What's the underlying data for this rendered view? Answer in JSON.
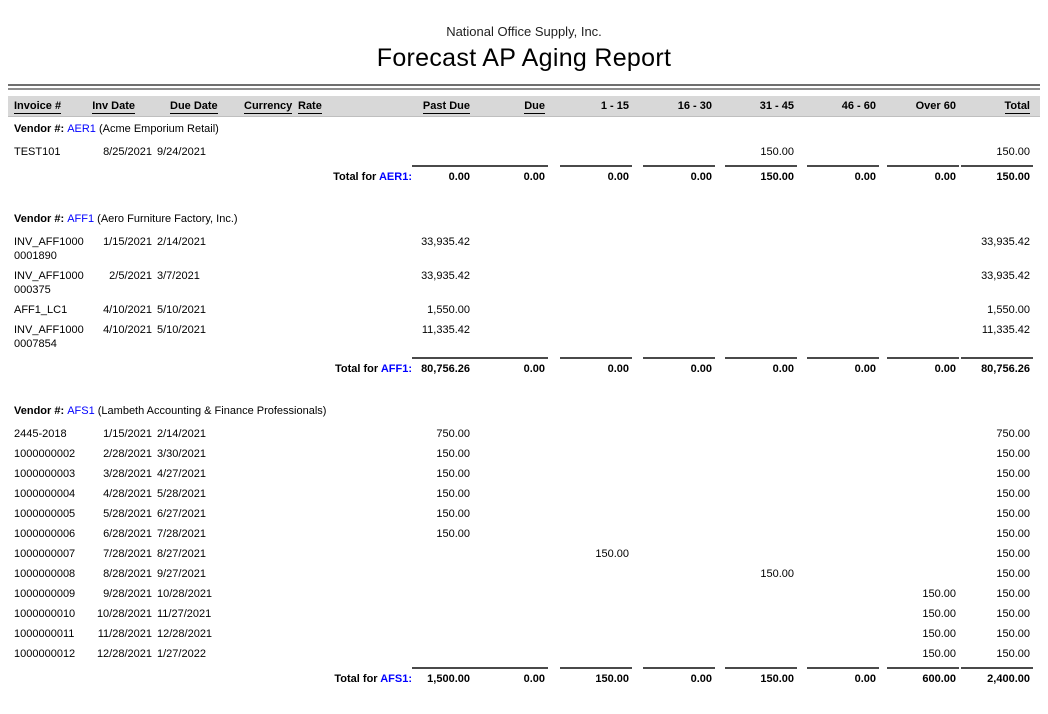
{
  "header": {
    "company": "National Office Supply, Inc.",
    "title": "Forecast AP Aging Report"
  },
  "colors": {
    "accent_blue": "#0000ff",
    "header_bar_bg": "#d8d8d8",
    "rule_gray": "#6f6f6f"
  },
  "table": {
    "vendor_prefix": "Vendor #:",
    "total_prefix": "Total for",
    "total_suffix": ":",
    "columns": [
      {
        "label": "Invoice #",
        "underline": true
      },
      {
        "label": "Inv Date",
        "underline": true
      },
      {
        "label": "Due Date",
        "underline": true
      },
      {
        "label": "Currency",
        "underline": true
      },
      {
        "label": "Rate",
        "underline": true
      },
      {
        "label": "Past Due",
        "underline": true
      },
      {
        "label": "Due",
        "underline": true
      },
      {
        "label": "1 - 15",
        "underline": false
      },
      {
        "label": "16 - 30",
        "underline": false
      },
      {
        "label": "31 - 45",
        "underline": false
      },
      {
        "label": "46 - 60",
        "underline": false
      },
      {
        "label": "Over 60",
        "underline": false
      },
      {
        "label": "Total",
        "underline": true
      }
    ]
  },
  "vendors": [
    {
      "code": "AER1",
      "name": "(Acme Emporium Retail)",
      "invoices": [
        {
          "invoice_lines": [
            "TEST101"
          ],
          "inv_date": "8/25/2021",
          "due_date": "9/24/2021",
          "amounts": [
            "",
            "",
            "",
            "",
            "150.00",
            "",
            "",
            "150.00"
          ]
        }
      ],
      "totals": [
        "0.00",
        "0.00",
        "0.00",
        "0.00",
        "150.00",
        "0.00",
        "0.00",
        "150.00"
      ]
    },
    {
      "code": "AFF1",
      "name": "(Aero Furniture Factory, Inc.)",
      "invoices": [
        {
          "invoice_lines": [
            "INV_AFF1000",
            "0001890"
          ],
          "inv_date": "1/15/2021",
          "due_date": "2/14/2021",
          "amounts": [
            "33,935.42",
            "",
            "",
            "",
            "",
            "",
            "",
            "33,935.42"
          ]
        },
        {
          "invoice_lines": [
            "INV_AFF1000",
            "000375"
          ],
          "inv_date": "2/5/2021",
          "due_date": "3/7/2021",
          "amounts": [
            "33,935.42",
            "",
            "",
            "",
            "",
            "",
            "",
            "33,935.42"
          ]
        },
        {
          "invoice_lines": [
            "AFF1_LC1"
          ],
          "inv_date": "4/10/2021",
          "due_date": "5/10/2021",
          "amounts": [
            "1,550.00",
            "",
            "",
            "",
            "",
            "",
            "",
            "1,550.00"
          ]
        },
        {
          "invoice_lines": [
            "INV_AFF1000",
            "0007854"
          ],
          "inv_date": "4/10/2021",
          "due_date": "5/10/2021",
          "amounts": [
            "11,335.42",
            "",
            "",
            "",
            "",
            "",
            "",
            "11,335.42"
          ]
        }
      ],
      "totals": [
        "80,756.26",
        "0.00",
        "0.00",
        "0.00",
        "0.00",
        "0.00",
        "0.00",
        "80,756.26"
      ]
    },
    {
      "code": "AFS1",
      "name": "(Lambeth Accounting & Finance Professionals)",
      "invoices": [
        {
          "invoice_lines": [
            "2445-2018"
          ],
          "inv_date": "1/15/2021",
          "due_date": "2/14/2021",
          "amounts": [
            "750.00",
            "",
            "",
            "",
            "",
            "",
            "",
            "750.00"
          ]
        },
        {
          "invoice_lines": [
            "1000000002"
          ],
          "inv_date": "2/28/2021",
          "due_date": "3/30/2021",
          "amounts": [
            "150.00",
            "",
            "",
            "",
            "",
            "",
            "",
            "150.00"
          ]
        },
        {
          "invoice_lines": [
            "1000000003"
          ],
          "inv_date": "3/28/2021",
          "due_date": "4/27/2021",
          "amounts": [
            "150.00",
            "",
            "",
            "",
            "",
            "",
            "",
            "150.00"
          ]
        },
        {
          "invoice_lines": [
            "1000000004"
          ],
          "inv_date": "4/28/2021",
          "due_date": "5/28/2021",
          "amounts": [
            "150.00",
            "",
            "",
            "",
            "",
            "",
            "",
            "150.00"
          ]
        },
        {
          "invoice_lines": [
            "1000000005"
          ],
          "inv_date": "5/28/2021",
          "due_date": "6/27/2021",
          "amounts": [
            "150.00",
            "",
            "",
            "",
            "",
            "",
            "",
            "150.00"
          ]
        },
        {
          "invoice_lines": [
            "1000000006"
          ],
          "inv_date": "6/28/2021",
          "due_date": "7/28/2021",
          "amounts": [
            "150.00",
            "",
            "",
            "",
            "",
            "",
            "",
            "150.00"
          ]
        },
        {
          "invoice_lines": [
            "1000000007"
          ],
          "inv_date": "7/28/2021",
          "due_date": "8/27/2021",
          "amounts": [
            "",
            "",
            "150.00",
            "",
            "",
            "",
            "",
            "150.00"
          ]
        },
        {
          "invoice_lines": [
            "1000000008"
          ],
          "inv_date": "8/28/2021",
          "due_date": "9/27/2021",
          "amounts": [
            "",
            "",
            "",
            "",
            "150.00",
            "",
            "",
            "150.00"
          ]
        },
        {
          "invoice_lines": [
            "1000000009"
          ],
          "inv_date": "9/28/2021",
          "due_date": "10/28/2021",
          "amounts": [
            "",
            "",
            "",
            "",
            "",
            "",
            "150.00",
            "150.00"
          ]
        },
        {
          "invoice_lines": [
            "1000000010"
          ],
          "inv_date": "10/28/2021",
          "due_date": "11/27/2021",
          "amounts": [
            "",
            "",
            "",
            "",
            "",
            "",
            "150.00",
            "150.00"
          ]
        },
        {
          "invoice_lines": [
            "1000000011"
          ],
          "inv_date": "11/28/2021",
          "due_date": "12/28/2021",
          "amounts": [
            "",
            "",
            "",
            "",
            "",
            "",
            "150.00",
            "150.00"
          ]
        },
        {
          "invoice_lines": [
            "1000000012"
          ],
          "inv_date": "12/28/2021",
          "due_date": "1/27/2022",
          "amounts": [
            "",
            "",
            "",
            "",
            "",
            "",
            "150.00",
            "150.00"
          ]
        }
      ],
      "totals": [
        "1,500.00",
        "0.00",
        "150.00",
        "0.00",
        "150.00",
        "0.00",
        "600.00",
        "2,400.00"
      ]
    }
  ]
}
